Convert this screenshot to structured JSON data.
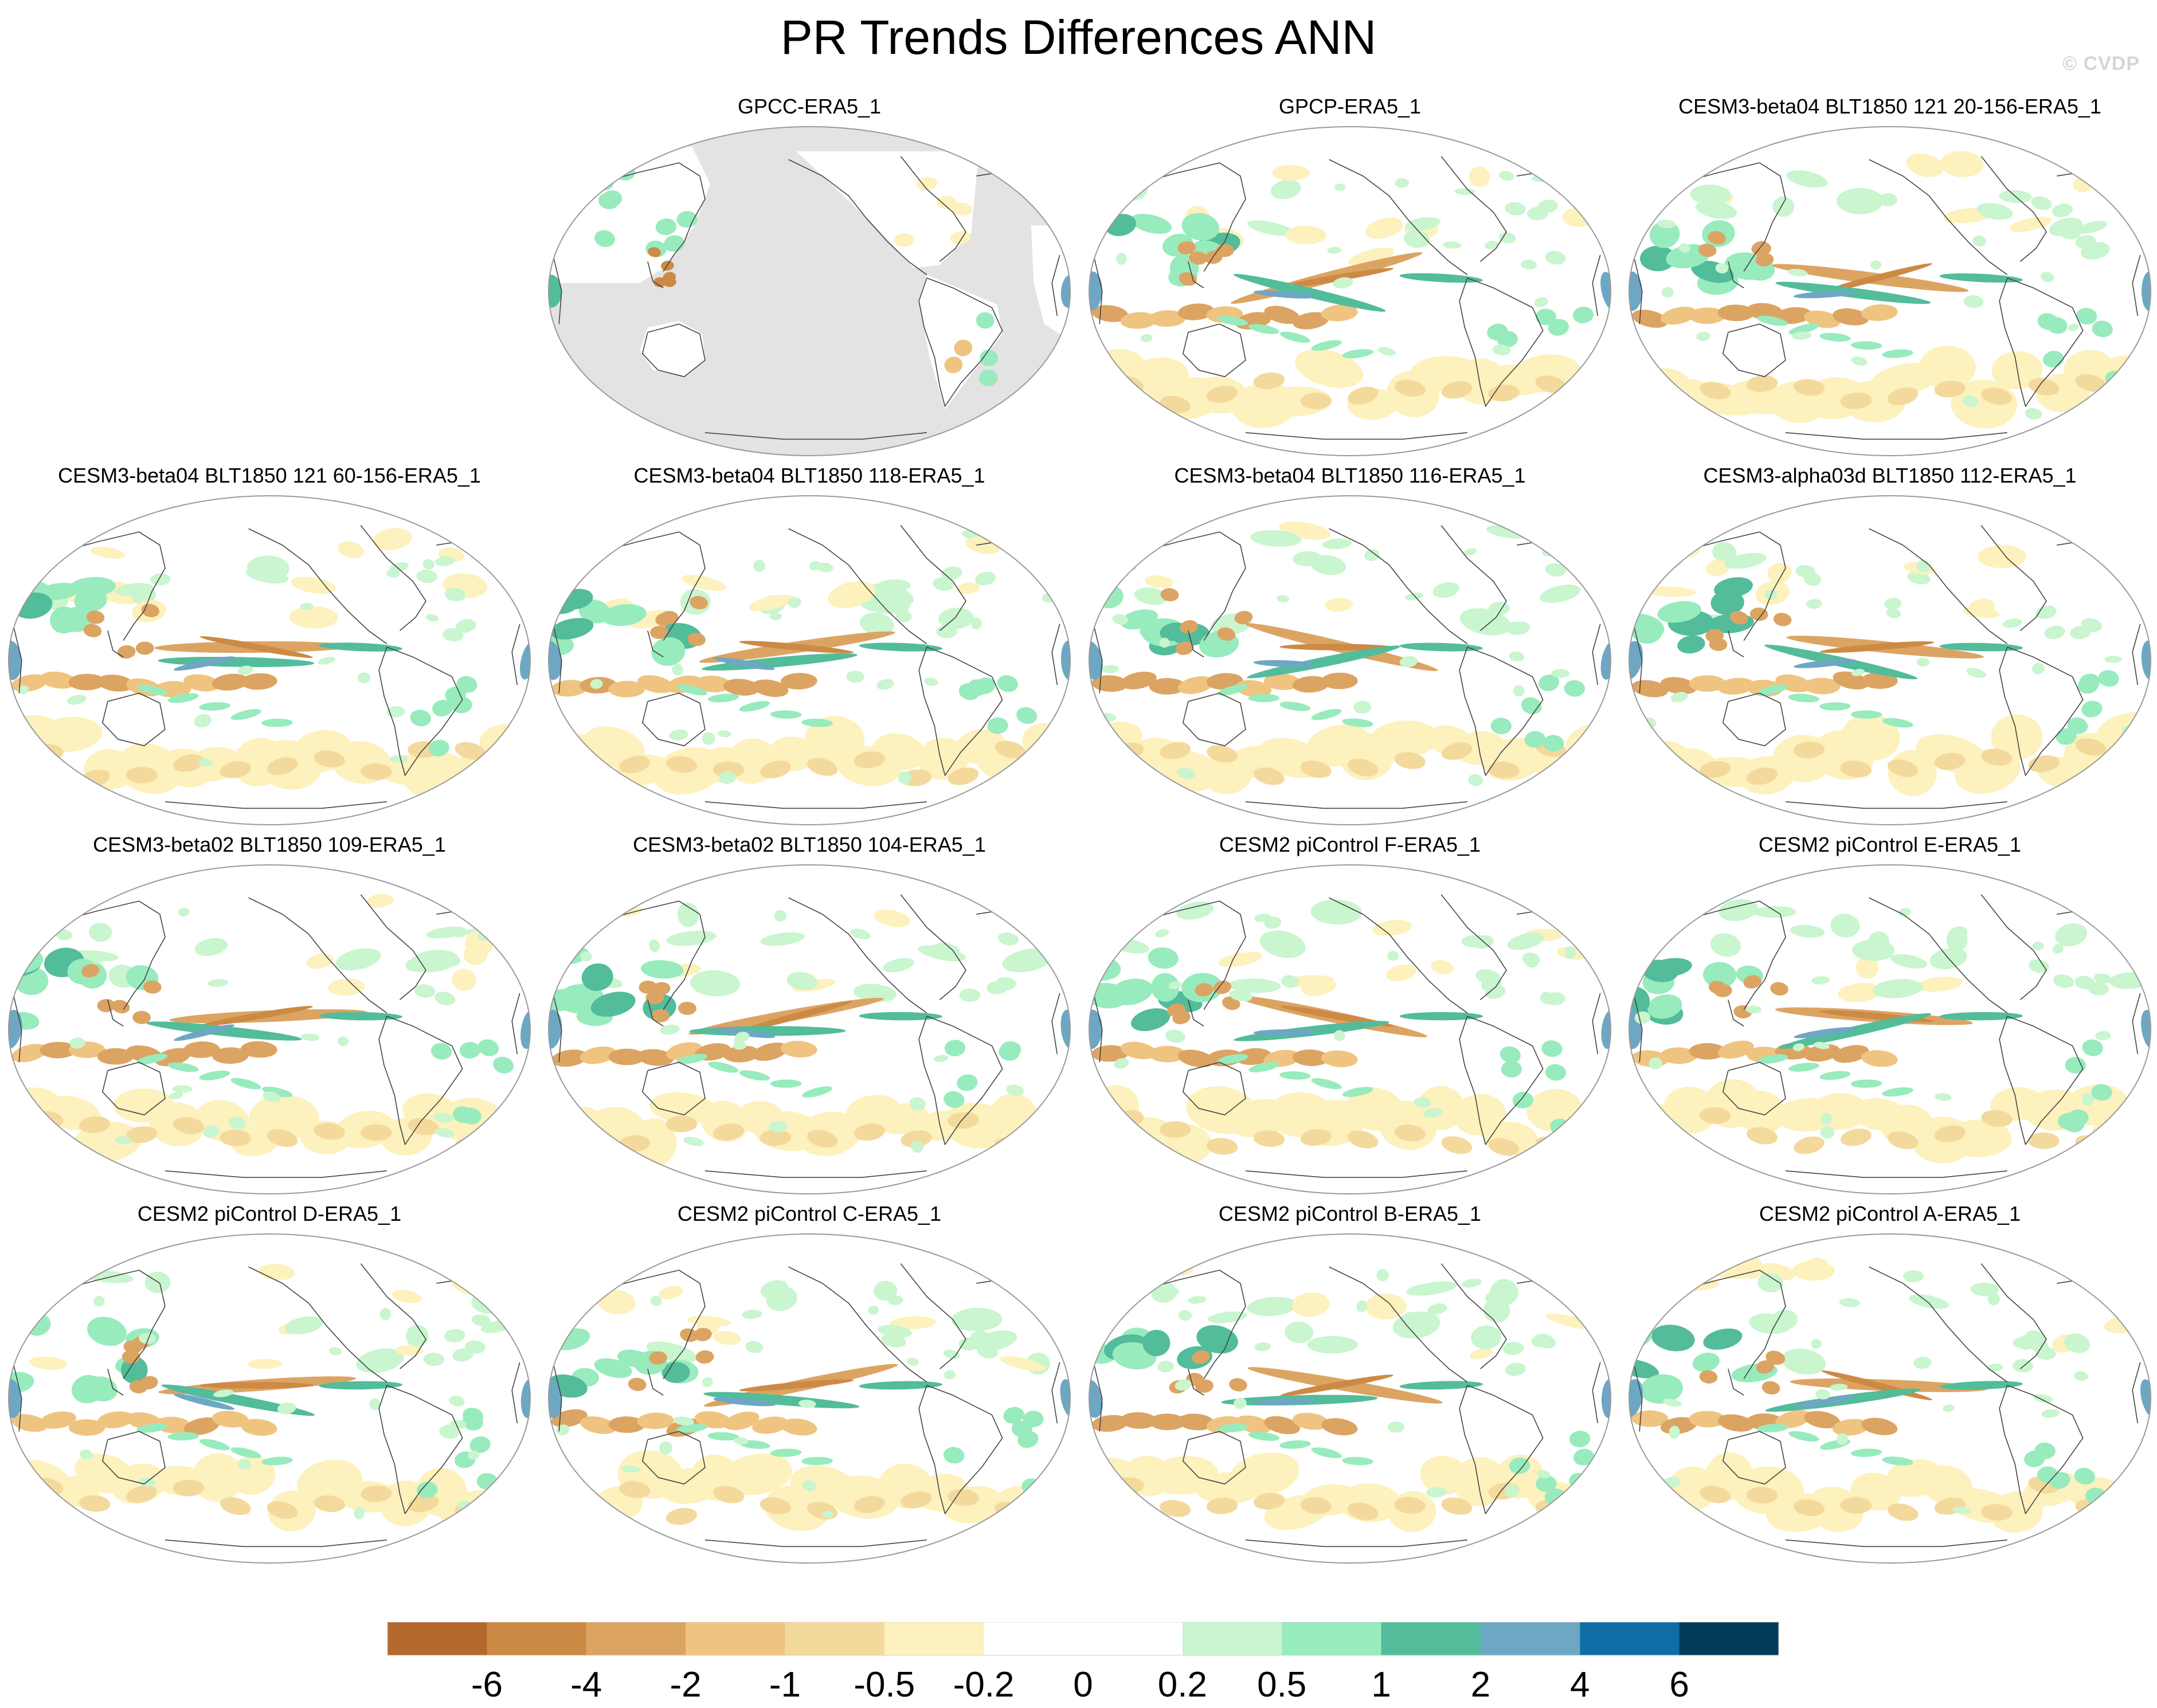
{
  "title": "PR Trends Differences ANN",
  "watermark": "© CVDP",
  "panels": [
    {
      "label": "GPCC-ERA5_1",
      "style": "obs_land"
    },
    {
      "label": "GPCP-ERA5_1",
      "style": "full"
    },
    {
      "label": "CESM3-beta04 BLT1850 121 20-156-ERA5_1",
      "style": "full"
    },
    {
      "label": "CESM3-beta04 BLT1850 121 60-156-ERA5_1",
      "style": "full"
    },
    {
      "label": "CESM3-beta04 BLT1850 118-ERA5_1",
      "style": "full"
    },
    {
      "label": "CESM3-beta04 BLT1850 116-ERA5_1",
      "style": "full"
    },
    {
      "label": "CESM3-alpha03d BLT1850 112-ERA5_1",
      "style": "full"
    },
    {
      "label": "CESM3-beta02 BLT1850 109-ERA5_1",
      "style": "full"
    },
    {
      "label": "CESM3-beta02 BLT1850 104-ERA5_1",
      "style": "full"
    },
    {
      "label": "CESM2 piControl F-ERA5_1",
      "style": "full"
    },
    {
      "label": "CESM2 piControl E-ERA5_1",
      "style": "full"
    },
    {
      "label": "CESM2 piControl D-ERA5_1",
      "style": "full"
    },
    {
      "label": "CESM2 piControl C-ERA5_1",
      "style": "full"
    },
    {
      "label": "CESM2 piControl B-ERA5_1",
      "style": "full"
    },
    {
      "label": "CESM2 piControl A-ERA5_1",
      "style": "full"
    }
  ],
  "colorbar": {
    "colors": [
      "#b5682d",
      "#cc8a45",
      "#dca463",
      "#efc480",
      "#f4d99d",
      "#fdf1bd",
      "#ffffff",
      "#ffffff",
      "#c9f5cf",
      "#98ebbd",
      "#52bc9b",
      "#6ea7c4",
      "#0f6ea6",
      "#033c5a"
    ],
    "tick_labels": [
      "-6",
      "-4",
      "-2",
      "-1",
      "-0.5",
      "-0.2",
      "0",
      "0.2",
      "0.5",
      "1",
      "2",
      "4",
      "6"
    ]
  },
  "map_colors": {
    "land_mask": "#e3e3e3",
    "coast": "#444444",
    "border": "#9a9a9a"
  }
}
